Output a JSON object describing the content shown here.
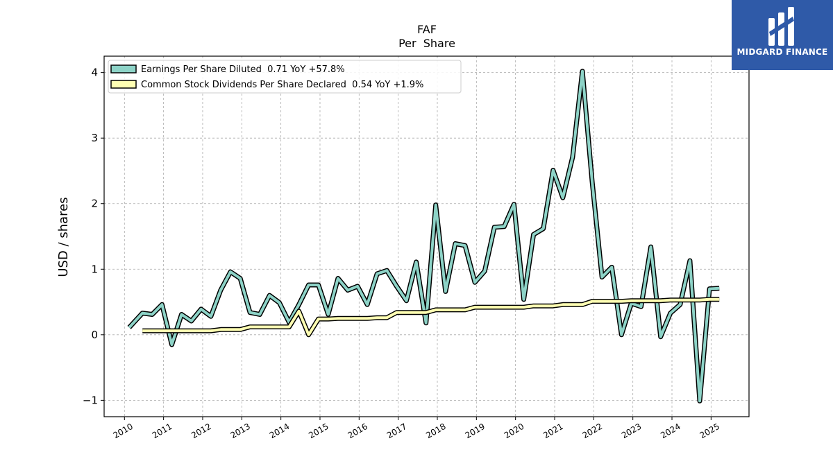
{
  "brand": {
    "name": "MIDGARD FINANCE",
    "color": "#2f5aa8"
  },
  "chart_data": {
    "type": "line",
    "title": "FAF",
    "subtitle": "Per  Share",
    "xlabel": "",
    "ylabel": "USD / shares",
    "xlim": [
      2009.48,
      2025.97
    ],
    "ylim": [
      -1.25,
      4.25
    ],
    "x_ticks": [
      "2010",
      "2011",
      "2012",
      "2013",
      "2014",
      "2015",
      "2016",
      "2017",
      "2018",
      "2019",
      "2020",
      "2021",
      "2022",
      "2023",
      "2024",
      "2025"
    ],
    "y_ticks": [
      -1,
      0,
      1,
      2,
      3,
      4
    ],
    "y_tick_labels": [
      "−1",
      "0",
      "1",
      "2",
      "3",
      "4"
    ],
    "grid": true,
    "legend_position": "top-left",
    "series": [
      {
        "name": "Earnings Per Share Diluted  0.71 YoY +57.8%",
        "color": "#8dd3c7",
        "x": [
          2010.12,
          2010.46,
          2010.71,
          2010.96,
          2011.21,
          2011.46,
          2011.71,
          2011.96,
          2012.21,
          2012.46,
          2012.71,
          2012.96,
          2013.21,
          2013.46,
          2013.71,
          2013.96,
          2014.21,
          2014.46,
          2014.71,
          2014.96,
          2015.21,
          2015.46,
          2015.71,
          2015.96,
          2016.21,
          2016.46,
          2016.71,
          2016.96,
          2017.21,
          2017.46,
          2017.71,
          2017.96,
          2018.21,
          2018.46,
          2018.71,
          2018.96,
          2019.21,
          2019.46,
          2019.71,
          2019.96,
          2020.21,
          2020.46,
          2020.71,
          2020.96,
          2021.21,
          2021.46,
          2021.71,
          2021.96,
          2022.21,
          2022.46,
          2022.71,
          2022.96,
          2023.21,
          2023.46,
          2023.71,
          2023.96,
          2024.21,
          2024.46,
          2024.71,
          2024.96,
          2025.21
        ],
        "values": [
          0.11,
          0.33,
          0.31,
          0.46,
          -0.15,
          0.31,
          0.21,
          0.39,
          0.28,
          0.68,
          0.96,
          0.86,
          0.34,
          0.31,
          0.6,
          0.49,
          0.19,
          0.46,
          0.76,
          0.76,
          0.31,
          0.86,
          0.68,
          0.74,
          0.46,
          0.93,
          0.98,
          0.74,
          0.52,
          1.11,
          0.18,
          1.98,
          0.66,
          1.39,
          1.36,
          0.8,
          0.97,
          1.64,
          1.65,
          1.99,
          0.54,
          1.53,
          1.62,
          2.51,
          2.09,
          2.71,
          4.02,
          2.33,
          0.88,
          1.03,
          0.0,
          0.48,
          0.43,
          1.34,
          -0.03,
          0.33,
          0.46,
          1.13,
          -1.01,
          0.7,
          0.71
        ]
      },
      {
        "name": "Common Stock Dividends Per Share Declared  0.54 YoY +1.9%",
        "color": "#ffffb3",
        "x": [
          2010.46,
          2010.71,
          2010.96,
          2011.21,
          2011.46,
          2011.71,
          2011.96,
          2012.21,
          2012.46,
          2012.71,
          2012.96,
          2013.21,
          2013.46,
          2013.71,
          2013.96,
          2014.21,
          2014.46,
          2014.71,
          2014.96,
          2015.21,
          2015.46,
          2015.71,
          2015.96,
          2016.21,
          2016.46,
          2016.71,
          2016.96,
          2017.21,
          2017.46,
          2017.71,
          2017.96,
          2018.21,
          2018.46,
          2018.71,
          2018.96,
          2019.21,
          2019.46,
          2019.71,
          2019.96,
          2020.21,
          2020.46,
          2020.71,
          2020.96,
          2021.21,
          2021.46,
          2021.71,
          2021.96,
          2022.21,
          2022.46,
          2022.71,
          2022.96,
          2023.21,
          2023.46,
          2023.71,
          2023.96,
          2024.21,
          2024.46,
          2024.71,
          2024.96,
          2025.21
        ],
        "values": [
          0.06,
          0.06,
          0.06,
          0.06,
          0.06,
          0.06,
          0.06,
          0.06,
          0.08,
          0.08,
          0.08,
          0.12,
          0.12,
          0.12,
          0.12,
          0.12,
          0.36,
          0.0,
          0.24,
          0.24,
          0.25,
          0.25,
          0.25,
          0.25,
          0.26,
          0.26,
          0.34,
          0.34,
          0.34,
          0.34,
          0.38,
          0.38,
          0.38,
          0.38,
          0.42,
          0.42,
          0.42,
          0.42,
          0.42,
          0.42,
          0.44,
          0.44,
          0.44,
          0.46,
          0.46,
          0.46,
          0.51,
          0.51,
          0.51,
          0.51,
          0.52,
          0.52,
          0.52,
          0.52,
          0.53,
          0.53,
          0.53,
          0.53,
          0.54,
          0.54
        ]
      }
    ]
  }
}
